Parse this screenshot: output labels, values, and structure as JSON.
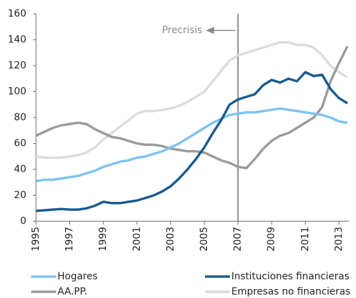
{
  "chart_data": {
    "type": "line",
    "x": [
      1995,
      1995.5,
      1996,
      1996.5,
      1997,
      1997.5,
      1998,
      1998.5,
      1999,
      1999.5,
      2000,
      2000.5,
      2001,
      2001.5,
      2002,
      2002.5,
      2003,
      2003.5,
      2004,
      2004.5,
      2005,
      2005.5,
      2006,
      2006.5,
      2007,
      2007.5,
      2008,
      2008.5,
      2009,
      2009.5,
      2010,
      2010.5,
      2011,
      2011.5,
      2012,
      2012.5,
      2013,
      2013.5
    ],
    "series": [
      {
        "name": "Hogares",
        "color": "#7ec3f0",
        "values": [
          31,
          32,
          32,
          33,
          34,
          35,
          37,
          39,
          42,
          44,
          46,
          47,
          49,
          50,
          52,
          54,
          57,
          60,
          64,
          68,
          72,
          76,
          79,
          82,
          83,
          84,
          84,
          85,
          86,
          87,
          86,
          85,
          84,
          83,
          82,
          80,
          77,
          76
        ]
      },
      {
        "name": "Instituciones financieras",
        "color": "#1b5b8c",
        "values": [
          8,
          8.5,
          9,
          9.5,
          9,
          9,
          10,
          12,
          15,
          14,
          14,
          15,
          16,
          18,
          20,
          23,
          27,
          33,
          40,
          48,
          57,
          68,
          78,
          90,
          94,
          96,
          98,
          105,
          109,
          107,
          110,
          108,
          115,
          112,
          113,
          102,
          95,
          91
        ]
      },
      {
        "name": "AA.PP.",
        "color": "#9b9b9b",
        "values": [
          66,
          69,
          72,
          74,
          75,
          76,
          75,
          71,
          68,
          65,
          64,
          62,
          60,
          59,
          59,
          58,
          56,
          55,
          54,
          54,
          53,
          50,
          47,
          45,
          42,
          41,
          48,
          56,
          62,
          66,
          68,
          72,
          76,
          80,
          88,
          108,
          122,
          135
        ]
      },
      {
        "name": "Empresas no financieras",
        "color": "#dcdcdc",
        "values": [
          50,
          49,
          49,
          49,
          50,
          51,
          53,
          57,
          63,
          68,
          73,
          78,
          83,
          85,
          85,
          86,
          87,
          89,
          92,
          96,
          100,
          108,
          116,
          124,
          128,
          130,
          132,
          134,
          136,
          138,
          138,
          136,
          136,
          134,
          128,
          120,
          115,
          111
        ]
      }
    ],
    "annotation": {
      "text": "Precrisis",
      "x": 2007
    },
    "xlim": [
      1995,
      2013.6
    ],
    "xticks": [
      1995,
      1997,
      1999,
      2001,
      2003,
      2005,
      2007,
      2009,
      2011,
      2013
    ],
    "ylim": [
      0,
      160
    ],
    "yticks": [
      0,
      20,
      40,
      60,
      80,
      100,
      120,
      140,
      160
    ]
  }
}
